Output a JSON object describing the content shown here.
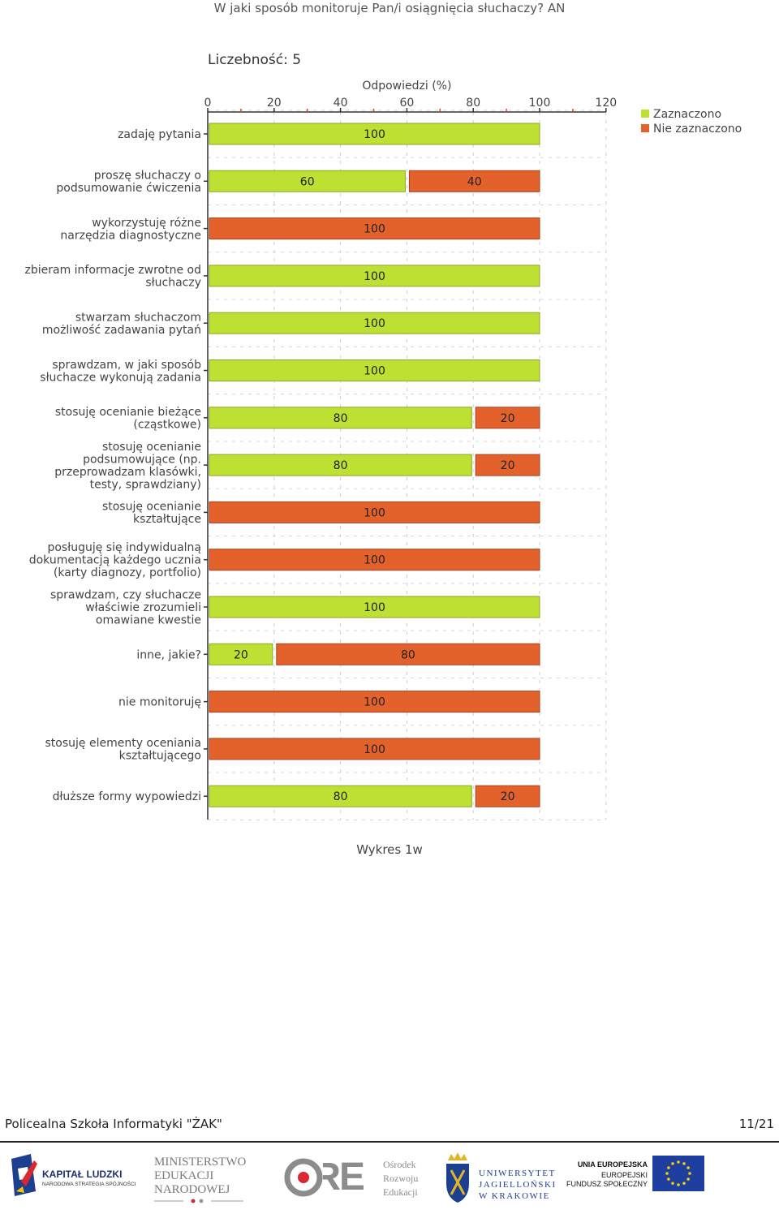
{
  "chart_data": {
    "type": "bar",
    "orientation": "horizontal",
    "stacked": true,
    "title": "W jaki sposób monitoruje Pan/i osiągnięcia słuchaczy?  AN",
    "subtitle": "Liczebność: 5",
    "xlabel": "Odpowiedzi (%)",
    "xlim": [
      0,
      120
    ],
    "xticks": [
      "0",
      "20",
      "40",
      "60",
      "80",
      "100",
      "120"
    ],
    "grid": true,
    "legend_position": "top-right",
    "categories": [
      [
        "zadaję pytania"
      ],
      [
        "proszę słuchaczy o",
        "podsumowanie ćwiczenia"
      ],
      [
        "wykorzystuję różne",
        "narzędzia diagnostyczne"
      ],
      [
        "zbieram informacje zwrotne od",
        "słuchaczy"
      ],
      [
        "stwarzam słuchaczom",
        "możliwość zadawania pytań"
      ],
      [
        "sprawdzam, w jaki sposób",
        "słuchacze wykonują zadania"
      ],
      [
        "stosuję ocenianie bieżące",
        "(cząstkowe)"
      ],
      [
        "stosuję ocenianie",
        "podsumowujące (np.",
        "przeprowadzam klasówki,",
        "testy, sprawdziany)"
      ],
      [
        "stosuję ocenianie",
        "kształtujące"
      ],
      [
        "posługuję się indywidualną",
        "dokumentacją każdego ucznia",
        "(karty diagnozy, portfolio)"
      ],
      [
        "sprawdzam, czy słuchacze",
        "właściwie zrozumieli",
        "omawiane kwestie"
      ],
      [
        "inne, jakie?"
      ],
      [
        "nie monitoruję"
      ],
      [
        "stosuję elementy oceniania",
        "kształtującego"
      ],
      [
        "dłuższe formy wypowiedzi"
      ]
    ],
    "series": [
      {
        "name": "Zaznaczono",
        "color": "#bde033",
        "values": [
          100,
          60,
          0,
          100,
          100,
          100,
          80,
          80,
          0,
          0,
          100,
          20,
          0,
          0,
          80
        ]
      },
      {
        "name": "Nie zaznaczono",
        "color": "#e3622c",
        "values": [
          0,
          40,
          100,
          0,
          0,
          0,
          20,
          20,
          100,
          100,
          0,
          80,
          100,
          100,
          20
        ]
      }
    ]
  },
  "caption": "Wykres 1w",
  "footer": {
    "school": "Policealna Szkoła Informatyki \"ŻAK\"",
    "page": "11/21"
  },
  "logos": {
    "kl_line1": "KAPITAŁ LUDZKI",
    "kl_line2": "NARODOWA STRATEGIA SPÓJNOŚCI",
    "men_line1": "MINISTERSTWO",
    "men_line2": "EDUKACJI",
    "men_line3": "NARODOWEJ",
    "ore_mark": "ORE",
    "ore_line1": "Ośrodek",
    "ore_line2": "Rozwoju",
    "ore_line3": "Edukacji",
    "uj_line1": "UNIWERSYTET",
    "uj_line2": "JAGIELLOŃSKI",
    "uj_line3": "W KRAKOWIE",
    "ue_line1": "UNIA EUROPEJSKA",
    "ue_line2": "EUROPEJSKI",
    "ue_line3": "FUNDUSZ SPOŁECZNY"
  }
}
